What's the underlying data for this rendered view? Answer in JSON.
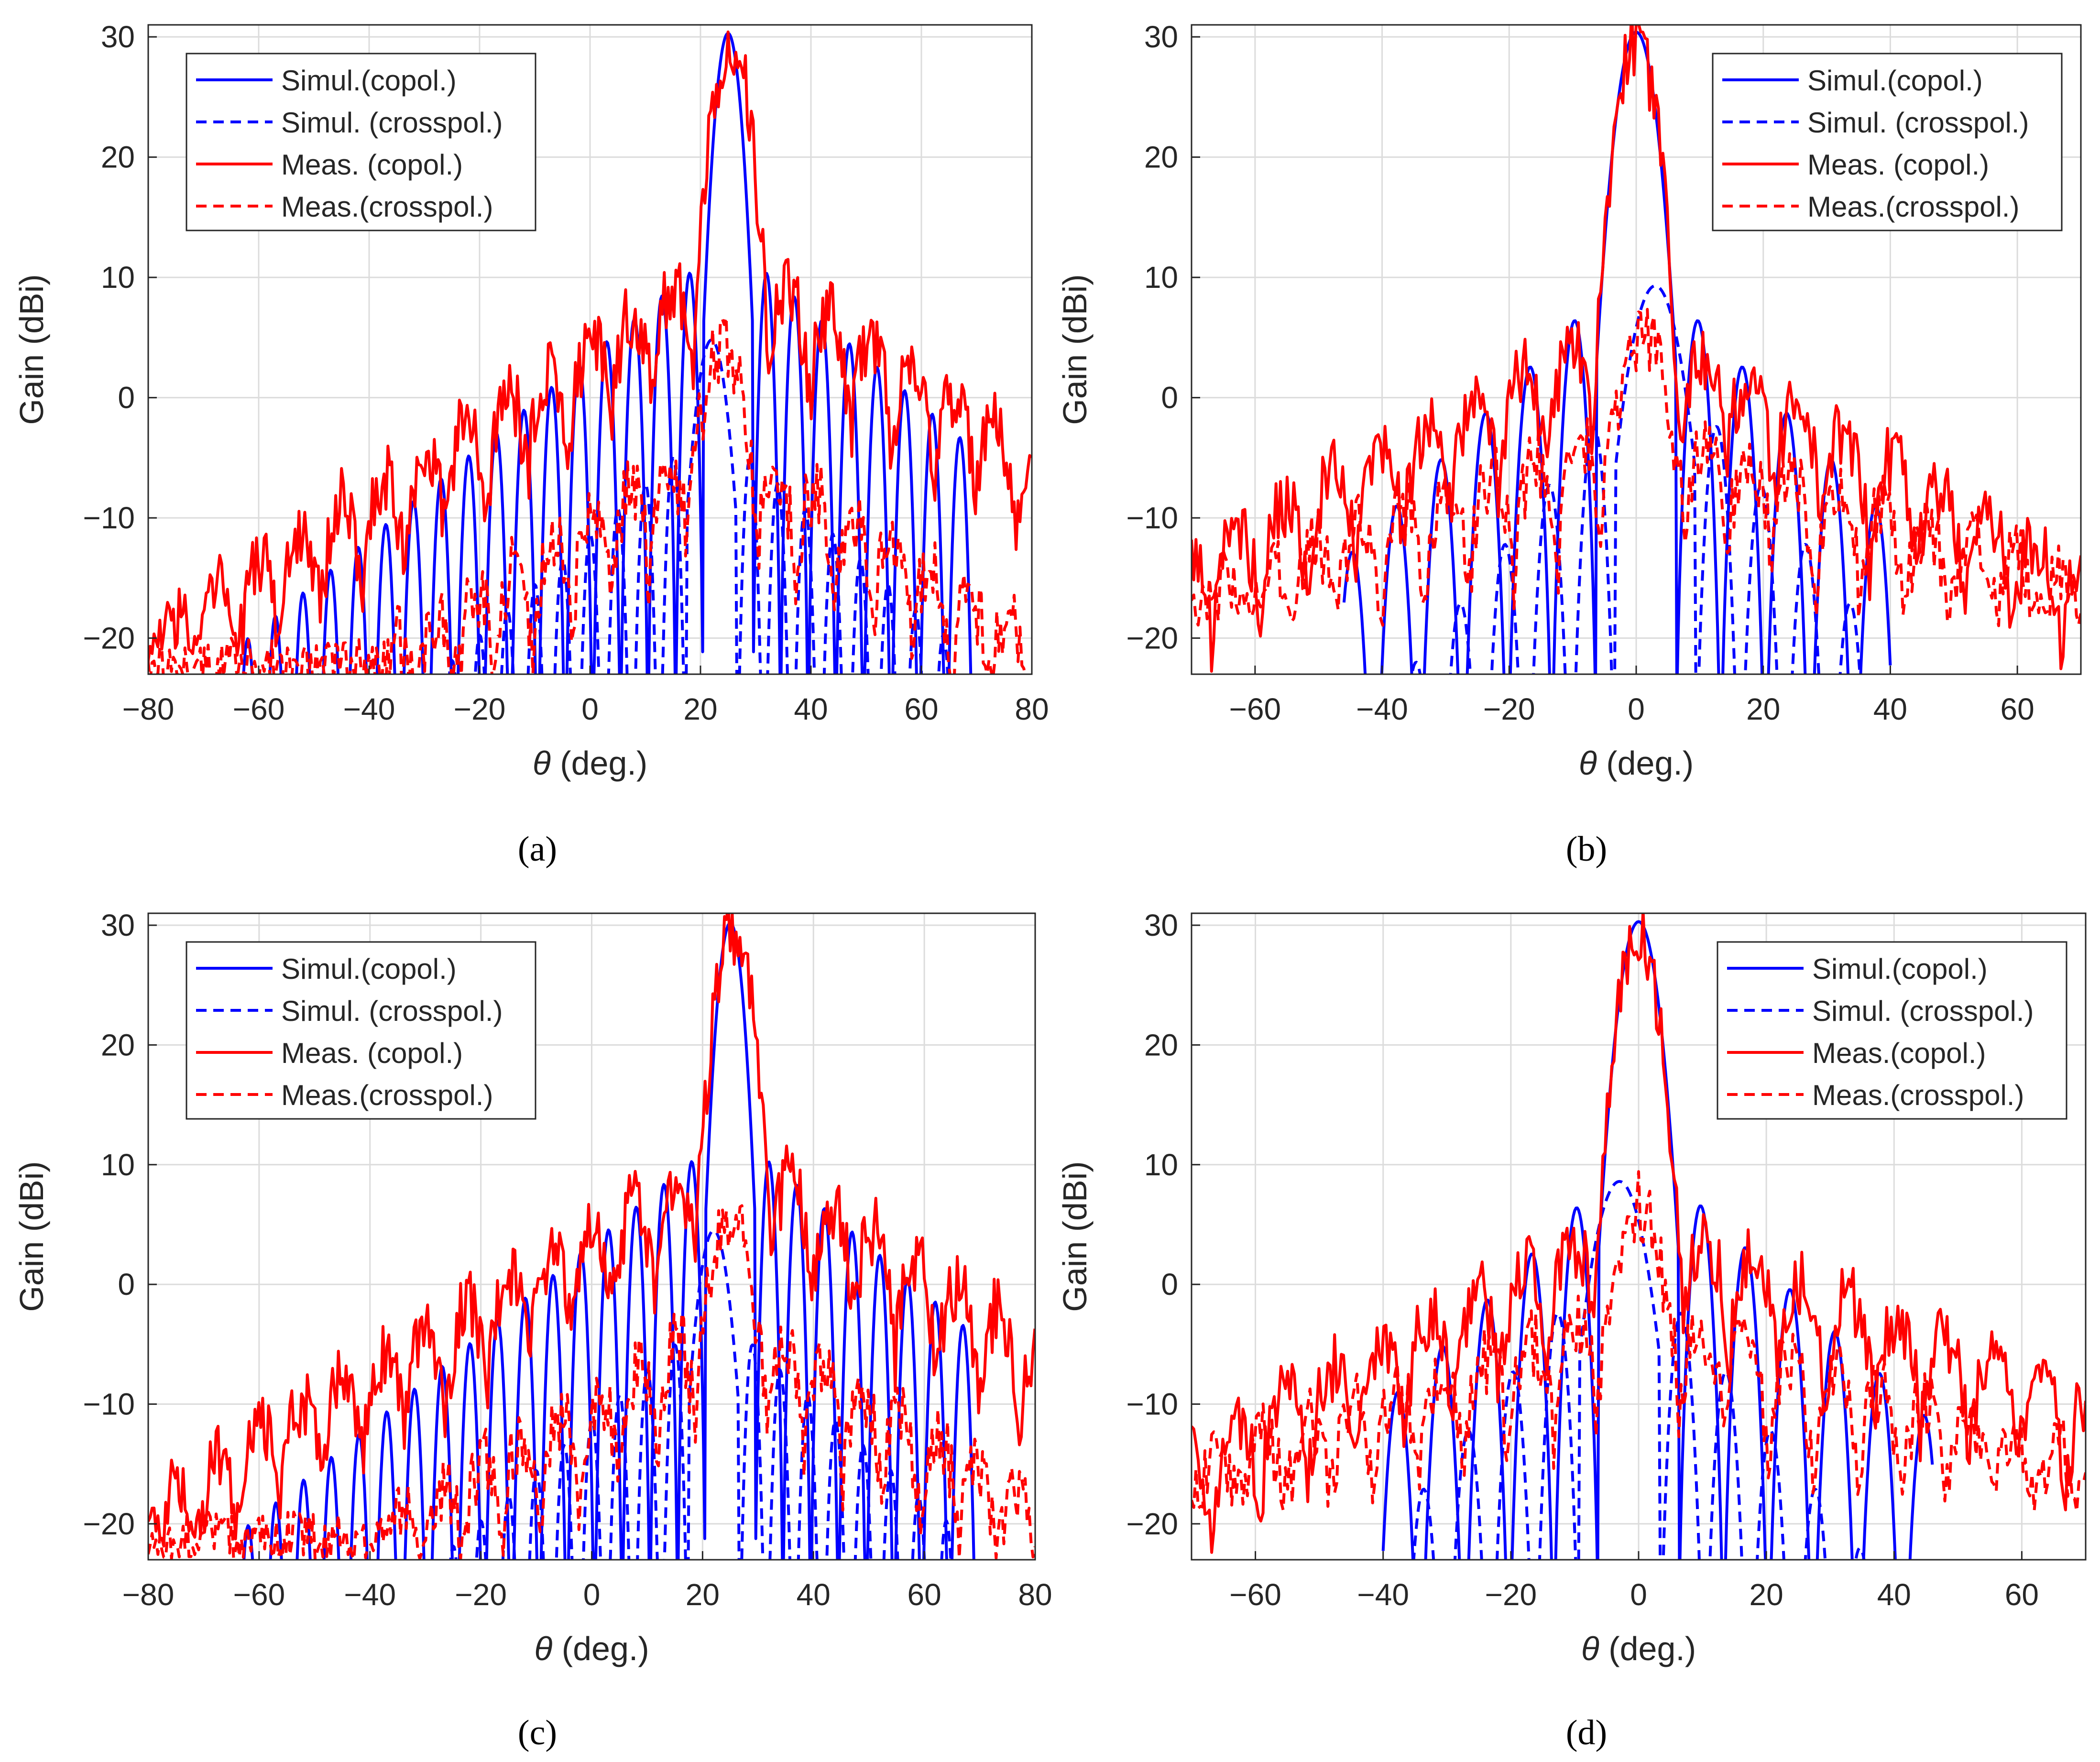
{
  "chart_data": [
    {
      "panel": "a",
      "caption": "(a)",
      "type": "line",
      "xlabel_symbol": "θ",
      "xlabel_unit": " (deg.)",
      "ylabel": "Gain (dBi)",
      "xlim": [
        -80,
        80
      ],
      "ylim": [
        -23,
        31
      ],
      "xticks": [
        -80,
        -60,
        -40,
        -20,
        0,
        20,
        40,
        60,
        80
      ],
      "yticks": [
        -20,
        -10,
        0,
        10,
        20,
        30
      ],
      "grid": true,
      "legend_position": "top-left",
      "series": [
        {
          "name": "Simul.(copol.)",
          "kind": "sim_co",
          "color": "#0000ff",
          "dash": "solid",
          "main_angle": 25,
          "peak": 30.3,
          "sidelobe_spacing": 5,
          "first_sidelobe": 11.3,
          "left_decay": 0.38,
          "right_decay": 0.39,
          "left_extent": -63,
          "right_extent": 70,
          "floor": -23
        },
        {
          "name": "Simul. (crosspol.)",
          "kind": "sim_x",
          "color": "#0000ff",
          "dash": "dashed",
          "main_angle": 22,
          "peak": 4.8,
          "sidelobe_spacing": 5,
          "first_sidelobe": -4,
          "left_decay": 0.42,
          "right_decay": 0.42,
          "left_extent": -66,
          "right_extent": 66,
          "floor": -23
        },
        {
          "name": "Meas. (copol.)",
          "kind": "meas_co",
          "color": "#ff0000",
          "dash": "solid",
          "main_angle": 25.5,
          "peak": 30.0,
          "sidelobe_spacing": 7.5,
          "first_sidelobe": 10.3,
          "left_decay": 0.3,
          "right_decay": 0.3,
          "left_extent": -80,
          "right_extent": 80,
          "floor": -14
        },
        {
          "name": "Meas.(crosspol.)",
          "kind": "meas_x",
          "color": "#ff0000",
          "dash": "dashed",
          "main_angle": 24,
          "peak": 4.1,
          "sidelobe_spacing": 7,
          "first_sidelobe": -4.5,
          "left_decay": 0.3,
          "right_decay": 0.3,
          "left_extent": -80,
          "right_extent": 80,
          "floor": -16
        }
      ]
    },
    {
      "panel": "b",
      "caption": "(b)",
      "type": "line",
      "xlabel_symbol": "θ",
      "xlabel_unit": " (deg.)",
      "ylabel": "Gain (dBi)",
      "xlim": [
        -70,
        70
      ],
      "ylim": [
        -23,
        31
      ],
      "xticks": [
        -60,
        -40,
        -20,
        0,
        20,
        40,
        60
      ],
      "yticks": [
        -20,
        -10,
        0,
        10,
        20,
        30
      ],
      "grid": true,
      "legend_position": "top-right",
      "series": [
        {
          "name": "Simul.(copol.)",
          "kind": "sim_co",
          "color": "#0000ff",
          "dash": "solid",
          "main_angle": 0,
          "peak": 30.4,
          "sidelobe_spacing": 7,
          "first_sidelobe": 8.3,
          "left_decay": 0.55,
          "right_decay": 0.55,
          "left_extent": -46,
          "right_extent": 40,
          "floor": -23
        },
        {
          "name": "Simul. (crosspol.)",
          "kind": "sim_x",
          "color": "#0000ff",
          "dash": "dashed",
          "main_angle": 3,
          "peak": 9.3,
          "sidelobe_spacing": 7,
          "first_sidelobe": 0,
          "left_decay": 0.7,
          "right_decay": 0.7,
          "left_extent": -45,
          "right_extent": 40,
          "floor": -23
        },
        {
          "name": "Meas. (copol.)",
          "kind": "meas_co",
          "color": "#ff0000",
          "dash": "solid",
          "main_angle": 0,
          "peak": 29.8,
          "sidelobe_spacing": 7.5,
          "first_sidelobe": 5,
          "left_decay": 0.28,
          "right_decay": 0.3,
          "left_extent": -70,
          "right_extent": 70,
          "floor": -15
        },
        {
          "name": "Meas.(crosspol.)",
          "kind": "meas_x",
          "color": "#ff0000",
          "dash": "dashed",
          "main_angle": 1,
          "peak": 5.3,
          "sidelobe_spacing": 7,
          "first_sidelobe": -3,
          "left_decay": 0.2,
          "right_decay": 0.2,
          "left_extent": -70,
          "right_extent": 70,
          "floor": -11
        }
      ]
    },
    {
      "panel": "c",
      "caption": "(c)",
      "type": "line",
      "xlabel_symbol": "θ",
      "xlabel_unit": " (deg.)",
      "ylabel": "Gain (dBi)",
      "xlim": [
        -80,
        80
      ],
      "ylim": [
        -23,
        31
      ],
      "xticks": [
        -80,
        -60,
        -40,
        -20,
        0,
        20,
        40,
        60,
        80
      ],
      "yticks": [
        -20,
        -10,
        0,
        10,
        20,
        30
      ],
      "grid": true,
      "legend_position": "top-left",
      "series": [
        {
          "name": "Simul.(copol.)",
          "kind": "sim_co",
          "color": "#0000ff",
          "dash": "solid",
          "main_angle": 25,
          "peak": 30.2,
          "sidelobe_spacing": 5,
          "first_sidelobe": 11.2,
          "left_decay": 0.38,
          "right_decay": 0.39,
          "left_extent": -63,
          "right_extent": 70,
          "floor": -23
        },
        {
          "name": "Simul. (crosspol.)",
          "kind": "sim_x",
          "color": "#0000ff",
          "dash": "dashed",
          "main_angle": 22,
          "peak": 4.5,
          "sidelobe_spacing": 5,
          "first_sidelobe": -4,
          "left_decay": 0.42,
          "right_decay": 0.42,
          "left_extent": -66,
          "right_extent": 66,
          "floor": -23
        },
        {
          "name": "Meas. (copol.)",
          "kind": "meas_co",
          "color": "#ff0000",
          "dash": "solid",
          "main_angle": 25.5,
          "peak": 29.4,
          "sidelobe_spacing": 7.5,
          "first_sidelobe": 10,
          "left_decay": 0.28,
          "right_decay": 0.3,
          "left_extent": -80,
          "right_extent": 80,
          "floor": -14
        },
        {
          "name": "Meas.(crosspol.)",
          "kind": "meas_x",
          "color": "#ff0000",
          "dash": "dashed",
          "main_angle": 25,
          "peak": 5.5,
          "sidelobe_spacing": 7,
          "first_sidelobe": -4,
          "left_decay": 0.28,
          "right_decay": 0.28,
          "left_extent": -80,
          "right_extent": 80,
          "floor": -15
        }
      ]
    },
    {
      "panel": "d",
      "caption": "(d)",
      "type": "line",
      "xlabel_symbol": "θ",
      "xlabel_unit": " (deg.)",
      "ylabel": "Gain (dBi)",
      "xlim": [
        -70,
        70
      ],
      "ylim": [
        -23,
        31
      ],
      "xticks": [
        -60,
        -40,
        -20,
        0,
        20,
        40,
        60
      ],
      "yticks": [
        -20,
        -10,
        0,
        10,
        20,
        30
      ],
      "grid": true,
      "legend_position": "top-right",
      "series": [
        {
          "name": "Simul.(copol.)",
          "kind": "sim_co",
          "color": "#0000ff",
          "dash": "solid",
          "main_angle": 0,
          "peak": 30.3,
          "sidelobe_spacing": 7,
          "first_sidelobe": 8.3,
          "left_decay": 0.55,
          "right_decay": 0.5,
          "left_extent": -40,
          "right_extent": 46,
          "floor": -23
        },
        {
          "name": "Simul. (crosspol.)",
          "kind": "sim_x",
          "color": "#0000ff",
          "dash": "dashed",
          "main_angle": -3,
          "peak": 8.6,
          "sidelobe_spacing": 7,
          "first_sidelobe": 0,
          "left_decay": 0.7,
          "right_decay": 0.7,
          "left_extent": -40,
          "right_extent": 36,
          "floor": -23
        },
        {
          "name": "Meas.(copol.)",
          "kind": "meas_co",
          "color": "#ff0000",
          "dash": "solid",
          "main_angle": 0,
          "peak": 29.5,
          "sidelobe_spacing": 7.5,
          "first_sidelobe": 4.5,
          "left_decay": 0.28,
          "right_decay": 0.22,
          "left_extent": -70,
          "right_extent": 70,
          "floor": -15
        },
        {
          "name": "Meas.(crosspol.)",
          "kind": "meas_x",
          "color": "#ff0000",
          "dash": "dashed",
          "main_angle": 0,
          "peak": 6.5,
          "sidelobe_spacing": 7,
          "first_sidelobe": -3,
          "left_decay": 0.18,
          "right_decay": 0.18,
          "left_extent": -70,
          "right_extent": 70,
          "floor": -11
        }
      ]
    }
  ]
}
